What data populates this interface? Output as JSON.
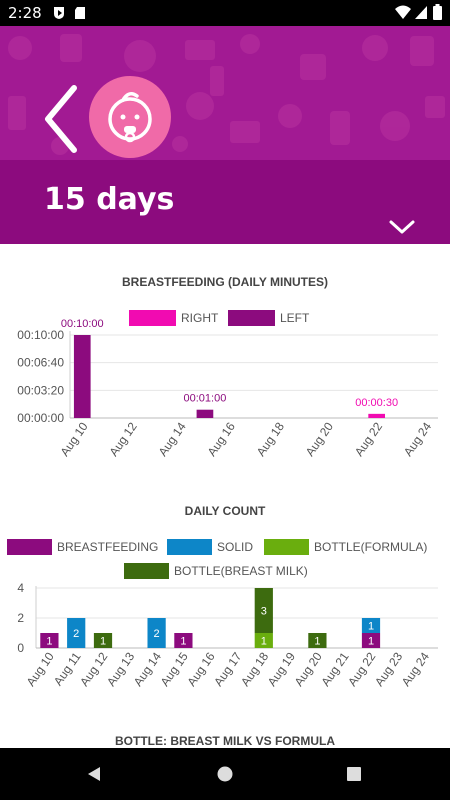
{
  "status_bar": {
    "time": "2:28"
  },
  "header": {
    "title": "15 days"
  },
  "colors": {
    "header_bg": "#8c0b7e",
    "right": "#f10bb1",
    "left": "#8c0b7e",
    "breastfeeding": "#8c0b7e",
    "solid": "#0d86c8",
    "bottle_formula": "#6aae0e",
    "bottle_breast_milk": "#3d6b0f"
  },
  "icons": {
    "back": "chevron-left-icon",
    "avatar": "baby-face-icon",
    "dropdown": "chevron-down-icon",
    "nav": [
      "back-triangle-icon",
      "home-circle-icon",
      "recents-square-icon"
    ]
  },
  "chart_data": [
    {
      "type": "bar",
      "title": "BREASTFEEDING (DAILY MINUTES)",
      "categories": [
        "Aug 10",
        "Aug 11",
        "Aug 12",
        "Aug 13",
        "Aug 14",
        "Aug 15",
        "Aug 16",
        "Aug 17",
        "Aug 18",
        "Aug 19",
        "Aug 20",
        "Aug 21",
        "Aug 22",
        "Aug 23",
        "Aug 24"
      ],
      "x_tick_labels": [
        "Aug 10",
        "Aug 12",
        "Aug 14",
        "Aug 16",
        "Aug 18",
        "Aug 20",
        "Aug 22",
        "Aug 24"
      ],
      "y_tick_labels": [
        "00:00:00",
        "00:03:20",
        "00:06:40",
        "00:10:00"
      ],
      "ylim": [
        0,
        600
      ],
      "grid": true,
      "legend_position": "top-center",
      "legend": [
        "RIGHT",
        "LEFT"
      ],
      "series": [
        {
          "name": "RIGHT",
          "values": [
            0,
            0,
            0,
            0,
            0,
            0,
            0,
            0,
            0,
            0,
            0,
            0,
            30,
            0,
            0
          ]
        },
        {
          "name": "LEFT",
          "values": [
            600,
            0,
            0,
            0,
            0,
            60,
            0,
            0,
            0,
            0,
            0,
            0,
            0,
            0,
            0
          ]
        }
      ],
      "bars": [
        {
          "category": "Aug 10",
          "series": "LEFT",
          "value": 600,
          "label": "00:10:00"
        },
        {
          "category": "Aug 15",
          "series": "LEFT",
          "value": 60,
          "label": "00:01:00"
        },
        {
          "category": "Aug 22",
          "series": "RIGHT",
          "value": 30,
          "label": "00:00:30"
        }
      ]
    },
    {
      "type": "bar",
      "title": "DAILY COUNT",
      "categories": [
        "Aug 10",
        "Aug 11",
        "Aug 12",
        "Aug 13",
        "Aug 14",
        "Aug 15",
        "Aug 16",
        "Aug 17",
        "Aug 18",
        "Aug 19",
        "Aug 20",
        "Aug 21",
        "Aug 22",
        "Aug 23",
        "Aug 24"
      ],
      "y_tick_labels": [
        "0",
        "2",
        "4"
      ],
      "ylim": [
        0,
        4
      ],
      "grid": true,
      "stacked": true,
      "legend_position": "top",
      "legend": [
        "BREASTFEEDING",
        "SOLID",
        "BOTTLE(FORMULA)",
        "BOTTLE(BREAST MILK)"
      ],
      "series": [
        {
          "name": "BREASTFEEDING",
          "values": [
            1,
            0,
            0,
            0,
            0,
            1,
            0,
            0,
            0,
            0,
            0,
            0,
            1,
            0,
            0
          ]
        },
        {
          "name": "SOLID",
          "values": [
            0,
            2,
            0,
            0,
            2,
            0,
            0,
            0,
            0,
            0,
            0,
            0,
            1,
            0,
            0
          ]
        },
        {
          "name": "BOTTLE(FORMULA)",
          "values": [
            0,
            0,
            0,
            0,
            0,
            0,
            0,
            0,
            1,
            0,
            0,
            0,
            0,
            0,
            0
          ]
        },
        {
          "name": "BOTTLE(BREAST MILK)",
          "values": [
            0,
            0,
            1,
            0,
            0,
            0,
            0,
            0,
            3,
            0,
            1,
            0,
            0,
            0,
            0
          ]
        }
      ]
    },
    {
      "type": "bar",
      "title": "BOTTLE: BREAST MILK VS FORMULA"
    }
  ]
}
